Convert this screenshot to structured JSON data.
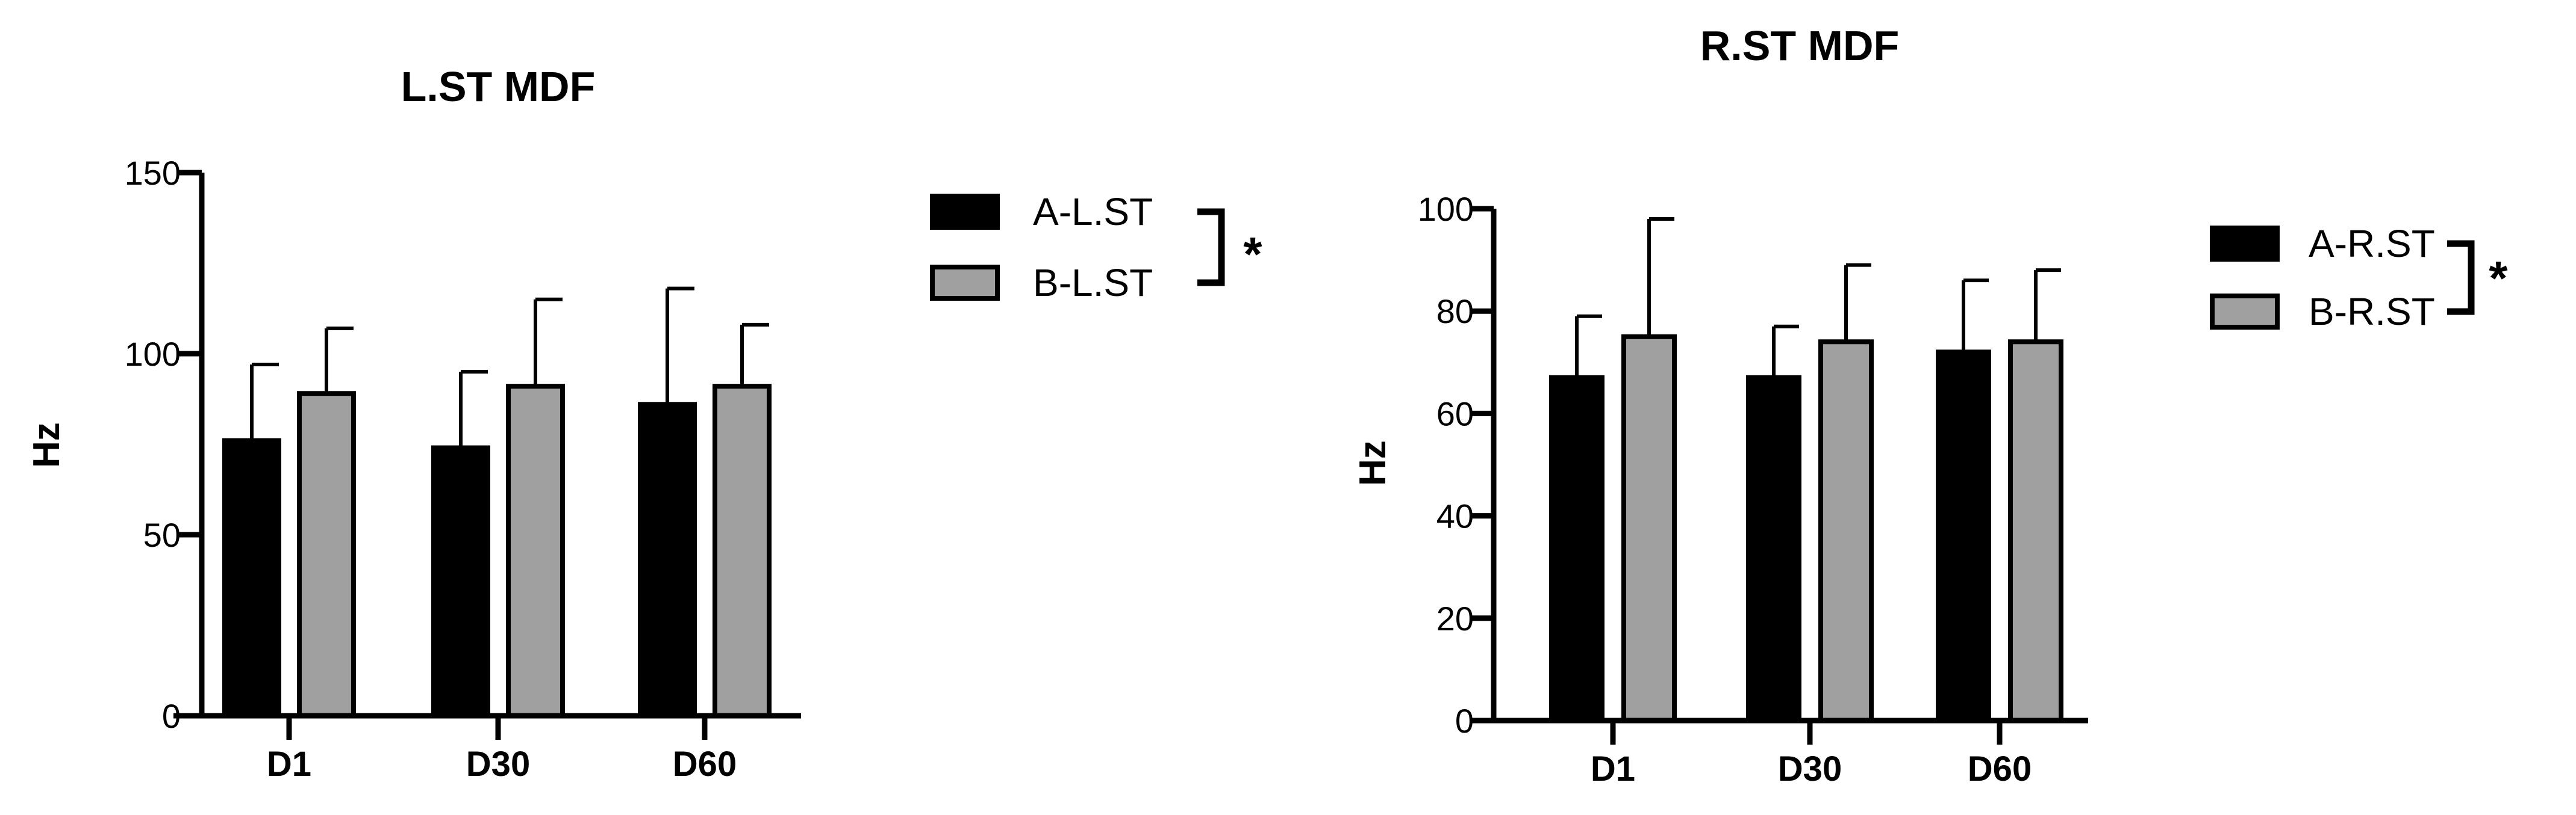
{
  "chart_data": [
    {
      "type": "bar",
      "title": "L.ST MDF",
      "ylabel": "Hz",
      "xlabel": "",
      "ylim": [
        0,
        150
      ],
      "yticks": [
        0,
        50,
        100,
        150
      ],
      "categories": [
        "D1",
        "D30",
        "D60"
      ],
      "series": [
        {
          "name": "A-L.ST",
          "values": [
            76,
            74,
            86
          ],
          "errors": [
            21,
            21,
            32
          ],
          "color": "#000000"
        },
        {
          "name": "B-L.ST",
          "values": [
            89,
            91,
            91
          ],
          "errors": [
            18,
            24,
            17
          ],
          "color": "#a0a0a0"
        }
      ],
      "significance": "*",
      "legend": "right"
    },
    {
      "type": "bar",
      "title": "R.ST MDF",
      "ylabel": "Hz",
      "xlabel": "",
      "ylim": [
        0,
        100
      ],
      "yticks": [
        0,
        20,
        40,
        60,
        80,
        100
      ],
      "categories": [
        "D1",
        "D30",
        "D60"
      ],
      "series": [
        {
          "name": "A-R.ST",
          "values": [
            67,
            67,
            72
          ],
          "errors": [
            12,
            10,
            14
          ],
          "color": "#000000"
        },
        {
          "name": "B-R.ST",
          "values": [
            75,
            74,
            74
          ],
          "errors": [
            23,
            15,
            14
          ],
          "color": "#a0a0a0"
        }
      ],
      "significance": "*",
      "legend": "right"
    }
  ]
}
